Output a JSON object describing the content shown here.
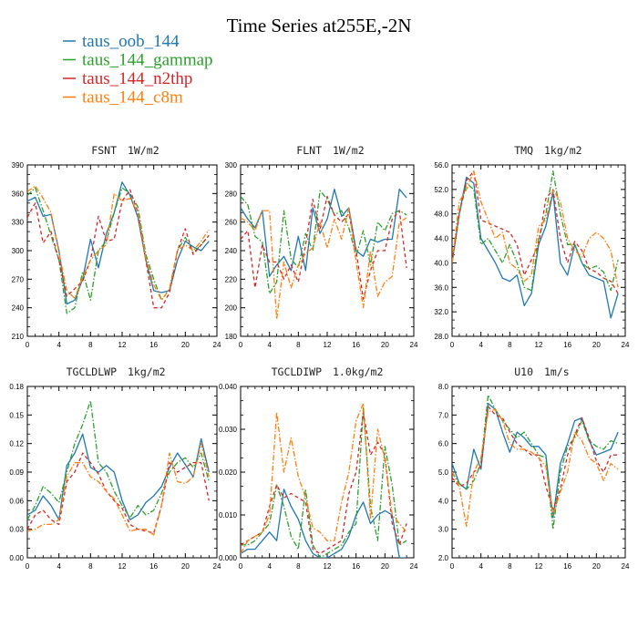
{
  "title": "Time Series at255E,-2N",
  "legend": [
    {
      "name": "taus_oob_144",
      "color": "#1f77b4",
      "dash": "solid"
    },
    {
      "name": "taus_144_gammap",
      "color": "#2ca02c",
      "dash": "dashdot"
    },
    {
      "name": "taus_144_n2thp",
      "color": "#d62728",
      "dash": "dashed"
    },
    {
      "name": "taus_144_c8m",
      "color": "#ff7f0e",
      "dash": "dashdot"
    }
  ],
  "chart_data": [
    {
      "type": "line",
      "var": "FSNT",
      "units": "1W/m2",
      "x": [
        0,
        1,
        2,
        3,
        4,
        5,
        6,
        7,
        8,
        9,
        10,
        11,
        12,
        13,
        14,
        15,
        16,
        17,
        18,
        19,
        20,
        21,
        22,
        23
      ],
      "xlim": [
        0,
        24
      ],
      "xticks": [
        "0",
        "4",
        "8",
        "12",
        "16",
        "20",
        "24"
      ],
      "ylim": [
        210,
        390
      ],
      "yticks": [
        "210",
        "240",
        "270",
        "300",
        "330",
        "360",
        "390"
      ],
      "series": [
        {
          "name": "taus_oob_144",
          "values": [
            352,
            356,
            336,
            338,
            300,
            244,
            248,
            270,
            312,
            282,
            318,
            340,
            372,
            358,
            335,
            290,
            258,
            256,
            258,
            290,
            310,
            304,
            300,
            310
          ]
        },
        {
          "name": "taus_144_gammap",
          "values": [
            358,
            366,
            342,
            316,
            290,
            234,
            240,
            278,
            248,
            300,
            310,
            340,
            366,
            360,
            346,
            296,
            270,
            248,
            260,
            300,
            314,
            298,
            306,
            316
          ]
        },
        {
          "name": "taus_144_n2thp",
          "values": [
            335,
            350,
            308,
            320,
            290,
            252,
            260,
            268,
            290,
            336,
            310,
            312,
            352,
            364,
            340,
            290,
            240,
            240,
            256,
            300,
            323,
            296,
            306,
            316
          ]
        },
        {
          "name": "taus_144_c8m",
          "values": [
            362,
            368,
            355,
            340,
            298,
            258,
            250,
            272,
            290,
            300,
            306,
            360,
            352,
            355,
            340,
            292,
            264,
            248,
            260,
            300,
            306,
            300,
            310,
            322
          ]
        }
      ]
    },
    {
      "type": "line",
      "var": "FLNT",
      "units": "1W/m2",
      "x": [
        0,
        1,
        2,
        3,
        4,
        5,
        6,
        7,
        8,
        9,
        10,
        11,
        12,
        13,
        14,
        15,
        16,
        17,
        18,
        19,
        20,
        21,
        22,
        23
      ],
      "xlim": [
        0,
        24
      ],
      "xticks": [
        "0",
        "4",
        "8",
        "12",
        "16",
        "20",
        "24"
      ],
      "ylim": [
        180,
        300
      ],
      "yticks": [
        "180",
        "200",
        "220",
        "240",
        "260",
        "280",
        "300"
      ],
      "series": [
        {
          "name": "taus_oob_144",
          "values": [
            270,
            262,
            256,
            268,
            222,
            230,
            236,
            226,
            250,
            226,
            270,
            252,
            262,
            283,
            264,
            270,
            240,
            236,
            248,
            246,
            248,
            248,
            283,
            277
          ]
        },
        {
          "name": "taus_144_gammap",
          "values": [
            278,
            272,
            250,
            246,
            210,
            218,
            268,
            234,
            228,
            252,
            240,
            282,
            276,
            265,
            268,
            256,
            236,
            254,
            230,
            260,
            254,
            266,
            268,
            265
          ]
        },
        {
          "name": "taus_144_n2thp",
          "values": [
            248,
            254,
            214,
            244,
            232,
            232,
            220,
            230,
            218,
            244,
            276,
            255,
            278,
            265,
            260,
            266,
            240,
            206,
            226,
            240,
            240,
            262,
            268,
            228
          ]
        },
        {
          "name": "taus_144_c8m",
          "values": [
            263,
            260,
            254,
            268,
            268,
            192,
            232,
            214,
            230,
            238,
            242,
            260,
            242,
            262,
            248,
            270,
            232,
            200,
            240,
            208,
            218,
            222,
            260,
            263
          ]
        }
      ]
    },
    {
      "type": "line",
      "var": "TMQ",
      "units": "1kg/m2",
      "x": [
        0,
        1,
        2,
        3,
        4,
        5,
        6,
        7,
        8,
        9,
        10,
        11,
        12,
        13,
        14,
        15,
        16,
        17,
        18,
        19,
        20,
        21,
        22,
        23
      ],
      "xlim": [
        0,
        24
      ],
      "xticks": [
        "0",
        "4",
        "8",
        "12",
        "16",
        "20",
        "24"
      ],
      "ylim": [
        28,
        56
      ],
      "yticks": [
        "28.0",
        "32.0",
        "36.0",
        "40.0",
        "44.0",
        "48.0",
        "52.0",
        "56.0"
      ],
      "series": [
        {
          "name": "taus_oob_144",
          "values": [
            40,
            48,
            54,
            53,
            44,
            42,
            40,
            37.5,
            37,
            38,
            33,
            35,
            43,
            46,
            51.5,
            40,
            38,
            43,
            40,
            38,
            37.5,
            37,
            31,
            35
          ]
        },
        {
          "name": "taus_144_gammap",
          "values": [
            40,
            48,
            53,
            52,
            43,
            44,
            42,
            40,
            43,
            40,
            36,
            35.5,
            44,
            48,
            55,
            48,
            43,
            43,
            40,
            39,
            39.5,
            38.5,
            35.5,
            40.5
          ]
        },
        {
          "name": "taus_144_n2thp",
          "values": [
            40,
            48,
            53.5,
            55,
            47,
            46.5,
            46,
            45.5,
            45,
            43,
            38,
            40.5,
            43,
            50.5,
            52,
            44,
            40,
            43.5,
            42,
            39,
            38.5,
            37.5,
            37,
            35
          ]
        },
        {
          "name": "taus_144_c8m",
          "values": [
            40,
            50,
            52,
            55,
            50,
            47,
            44,
            45,
            40,
            39,
            37,
            38,
            46,
            47,
            52,
            50,
            44,
            42,
            41,
            44,
            45,
            44,
            42,
            36
          ]
        }
      ]
    },
    {
      "type": "line",
      "var": "TGCLDLWP",
      "units": "1kg/m2",
      "x": [
        0,
        1,
        2,
        3,
        4,
        5,
        6,
        7,
        8,
        9,
        10,
        11,
        12,
        13,
        14,
        15,
        16,
        17,
        18,
        19,
        20,
        21,
        22,
        23
      ],
      "xlim": [
        0,
        24
      ],
      "xticks": [
        "0",
        "4",
        "8",
        "12",
        "16",
        "20",
        "24"
      ],
      "ylim": [
        0,
        0.18
      ],
      "yticks": [
        "0.00",
        "0.03",
        "0.06",
        "0.09",
        "0.12",
        "0.15",
        "0.18"
      ],
      "series": [
        {
          "name": "taus_oob_144",
          "values": [
            0.045,
            0.05,
            0.065,
            0.055,
            0.04,
            0.097,
            0.11,
            0.13,
            0.095,
            0.09,
            0.097,
            0.09,
            0.06,
            0.04,
            0.045,
            0.058,
            0.065,
            0.075,
            0.095,
            0.11,
            0.098,
            0.085,
            0.125,
            0.09
          ]
        },
        {
          "name": "taus_144_gammap",
          "values": [
            0.04,
            0.055,
            0.075,
            0.068,
            0.058,
            0.09,
            0.12,
            0.14,
            0.165,
            0.1,
            0.09,
            0.07,
            0.055,
            0.042,
            0.055,
            0.045,
            0.05,
            0.068,
            0.09,
            0.1,
            0.105,
            0.095,
            0.11,
            0.08
          ]
        },
        {
          "name": "taus_144_n2thp",
          "values": [
            0.03,
            0.045,
            0.05,
            0.04,
            0.035,
            0.08,
            0.09,
            0.11,
            0.1,
            0.088,
            0.07,
            0.06,
            0.052,
            0.035,
            0.03,
            0.028,
            0.026,
            0.055,
            0.1,
            0.09,
            0.095,
            0.1,
            0.1,
            0.06
          ]
        },
        {
          "name": "taus_144_c8m",
          "values": [
            0.028,
            0.03,
            0.035,
            0.035,
            0.04,
            0.085,
            0.1,
            0.1,
            0.085,
            0.08,
            0.07,
            0.062,
            0.045,
            0.028,
            0.03,
            0.03,
            0.024,
            0.055,
            0.11,
            0.08,
            0.078,
            0.085,
            0.12,
            0.085
          ]
        }
      ]
    },
    {
      "type": "line",
      "var": "TGCLDIWP",
      "units": "1.0kg/m2",
      "x": [
        0,
        1,
        2,
        3,
        4,
        5,
        6,
        7,
        8,
        9,
        10,
        11,
        12,
        13,
        14,
        15,
        16,
        17,
        18,
        19,
        20,
        21,
        22,
        23
      ],
      "xlim": [
        0,
        24
      ],
      "xticks": [
        "0",
        "4",
        "8",
        "12",
        "16",
        "20",
        "24"
      ],
      "ylim": [
        0,
        0.04
      ],
      "yticks": [
        "0.000",
        "0.010",
        "0.020",
        "0.030",
        "0.040"
      ],
      "series": [
        {
          "name": "taus_oob_144",
          "values": [
            0.001,
            0.002,
            0.002,
            0.004,
            0.006,
            0.004,
            0.016,
            0.012,
            0.009,
            0.004,
            0.001,
            0.0,
            0.0,
            0.001,
            0.002,
            0.005,
            0.01,
            0.013,
            0.008,
            0.01,
            0.011,
            0.01,
            0.0,
            0.0
          ]
        },
        {
          "name": "taus_144_gammap",
          "values": [
            0.003,
            0.003,
            0.004,
            0.006,
            0.008,
            0.017,
            0.012,
            0.005,
            0.002,
            0.016,
            0.003,
            0.0,
            0.001,
            0.002,
            0.003,
            0.006,
            0.008,
            0.035,
            0.012,
            0.004,
            0.026,
            0.017,
            0.003,
            0.004
          ]
        },
        {
          "name": "taus_144_n2thp",
          "values": [
            0.003,
            0.004,
            0.005,
            0.006,
            0.012,
            0.017,
            0.014,
            0.015,
            0.014,
            0.013,
            0.002,
            0.001,
            0.002,
            0.003,
            0.004,
            0.015,
            0.02,
            0.034,
            0.024,
            0.027,
            0.024,
            0.008,
            0.003,
            0.008
          ]
        },
        {
          "name": "taus_144_c8m",
          "values": [
            0.001,
            0.004,
            0.005,
            0.006,
            0.01,
            0.034,
            0.02,
            0.028,
            0.019,
            0.014,
            0.007,
            0.006,
            0.004,
            0.004,
            0.013,
            0.02,
            0.032,
            0.036,
            0.009,
            0.03,
            0.023,
            0.01,
            0.008,
            0.006
          ]
        }
      ]
    },
    {
      "type": "line",
      "var": "U10",
      "units": "1m/s",
      "x": [
        0,
        1,
        2,
        3,
        4,
        5,
        6,
        7,
        8,
        9,
        10,
        11,
        12,
        13,
        14,
        15,
        16,
        17,
        18,
        19,
        20,
        21,
        22,
        23
      ],
      "xlim": [
        0,
        24
      ],
      "xticks": [
        "0",
        "4",
        "8",
        "12",
        "16",
        "20",
        "24"
      ],
      "ylim": [
        2,
        8
      ],
      "yticks": [
        "2.0",
        "3.0",
        "4.0",
        "5.0",
        "6.0",
        "7.0",
        "8.0"
      ],
      "series": [
        {
          "name": "taus_oob_144",
          "values": [
            5.3,
            4.6,
            4.4,
            5.8,
            5.1,
            7.4,
            7.2,
            6.4,
            5.7,
            6.4,
            6.2,
            5.9,
            5.9,
            5.6,
            3.4,
            5.3,
            6.0,
            6.8,
            6.9,
            6.1,
            5.6,
            5.7,
            5.8,
            6.4
          ]
        },
        {
          "name": "taus_144_gammap",
          "values": [
            5.0,
            4.6,
            4.4,
            4.7,
            5.3,
            7.7,
            7.2,
            6.8,
            6.5,
            6.2,
            6.4,
            6.0,
            5.6,
            5.5,
            3.0,
            5.0,
            5.9,
            6.2,
            6.8,
            6.1,
            5.9,
            5.8,
            6.1,
            6.0
          ]
        },
        {
          "name": "taus_144_n2thp",
          "values": [
            4.8,
            4.5,
            4.6,
            5.0,
            5.2,
            7.3,
            7.0,
            6.9,
            6.4,
            6.0,
            5.8,
            5.6,
            5.6,
            4.5,
            3.7,
            4.4,
            5.6,
            6.3,
            6.9,
            6.2,
            5.4,
            5.0,
            5.6,
            5.6
          ]
        },
        {
          "name": "taus_144_c8m",
          "values": [
            5.0,
            4.5,
            3.1,
            5.0,
            5.5,
            7.1,
            7.2,
            6.8,
            6.0,
            5.8,
            5.8,
            5.7,
            5.5,
            5.2,
            3.5,
            4.3,
            5.0,
            6.4,
            6.1,
            5.5,
            5.3,
            4.7,
            5.3,
            5.1
          ]
        }
      ]
    }
  ]
}
